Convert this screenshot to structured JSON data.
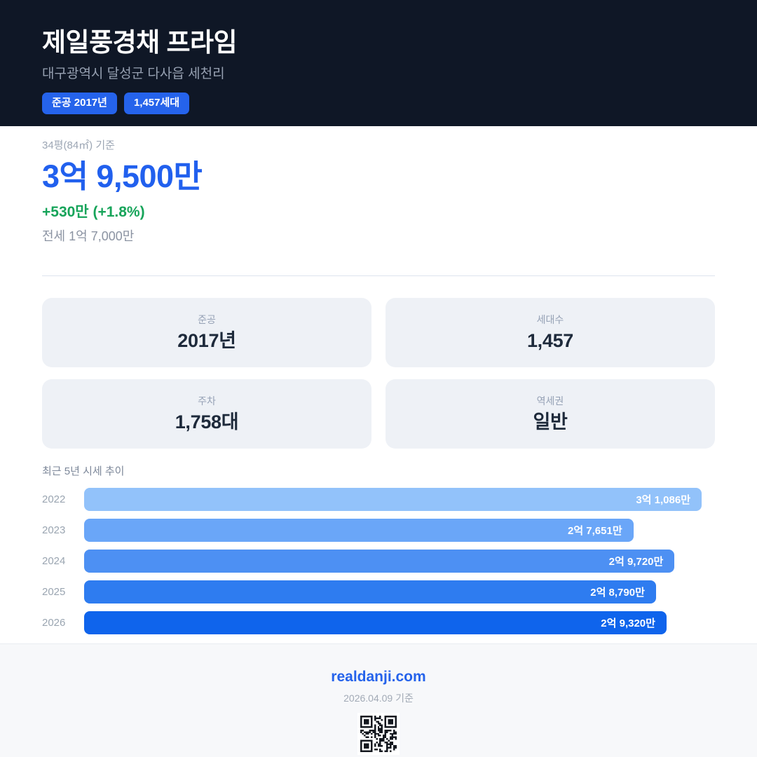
{
  "header": {
    "title": "제일풍경채 프라임",
    "address": "대구광역시 달성군 다사읍 세천리",
    "badges": [
      {
        "label": "준공 2017년"
      },
      {
        "label": "1,457세대"
      }
    ]
  },
  "price": {
    "basis": "34평(84㎡) 기준",
    "current": "3억 9,500만",
    "change": "+530만 (+1.8%)",
    "jeonse": "전세 1억 7,000만"
  },
  "stats": [
    {
      "label": "준공",
      "value": "2017년"
    },
    {
      "label": "세대수",
      "value": "1,457"
    },
    {
      "label": "주차",
      "value": "1,758대"
    },
    {
      "label": "역세권",
      "value": "일반"
    }
  ],
  "chart_data": {
    "type": "bar",
    "orientation": "horizontal",
    "title": "최근 5년 시세 추이",
    "categories": [
      "2022",
      "2023",
      "2024",
      "2025",
      "2026"
    ],
    "values": [
      31086,
      27651,
      29720,
      28790,
      29320
    ],
    "value_labels": [
      "3억 1,086만",
      "2억 7,651만",
      "2억 9,720만",
      "2억 8,790만",
      "2억 9,320만"
    ],
    "unit": "만원",
    "xlim": [
      0,
      31086
    ],
    "bar_colors": [
      "#92c2fa",
      "#6aa6f8",
      "#4d90f3",
      "#2e7cf0",
      "#0f64ec"
    ],
    "grid": false,
    "legend": false
  },
  "footer": {
    "site": "realdanji.com",
    "date_note": "2026.04.09 기준",
    "qr_icon": "qr-code-icon"
  },
  "colors": {
    "header_bg": "#0f1726",
    "badge_bg": "#2563eb",
    "price_blue": "#2160ee",
    "change_green": "#17a45a",
    "card_bg": "#eef1f6",
    "footer_bg": "#f7f8fa"
  }
}
